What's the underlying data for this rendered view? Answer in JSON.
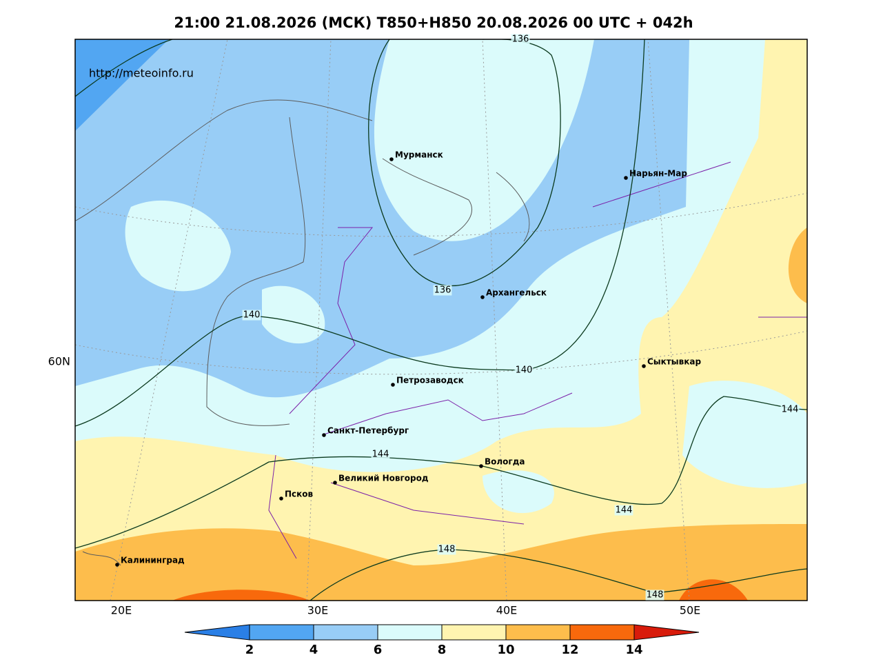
{
  "header": {
    "title": "21:00 21.08.2026 (МСК) T850+H850 20.08.2026 00 UTC + 042h"
  },
  "map": {
    "source": "http://meteoinfo.ru",
    "cities": [
      "Мурманск",
      "Нарьян-Мар",
      "Архангельск",
      "Сыктывкар",
      "Петрозаводск",
      "Санкт-Петербург",
      "Вологда",
      "Великий Новгород",
      "Псков",
      "Калининград"
    ],
    "contour_labels": [
      "136",
      "136",
      "140",
      "140",
      "144",
      "144",
      "144",
      "148",
      "148"
    ],
    "lon_labels": [
      "20E",
      "30E",
      "40E",
      "50E"
    ],
    "lat_labels": [
      "60N"
    ]
  },
  "colorbar": {
    "ticks": [
      2,
      4,
      6,
      8,
      10,
      12,
      14
    ],
    "colors": [
      "#2a7fe6",
      "#52a6f2",
      "#98cdf6",
      "#dbfbfb",
      "#fff4b0",
      "#fdbd4c",
      "#f8690c",
      "#d81b0b"
    ]
  }
}
